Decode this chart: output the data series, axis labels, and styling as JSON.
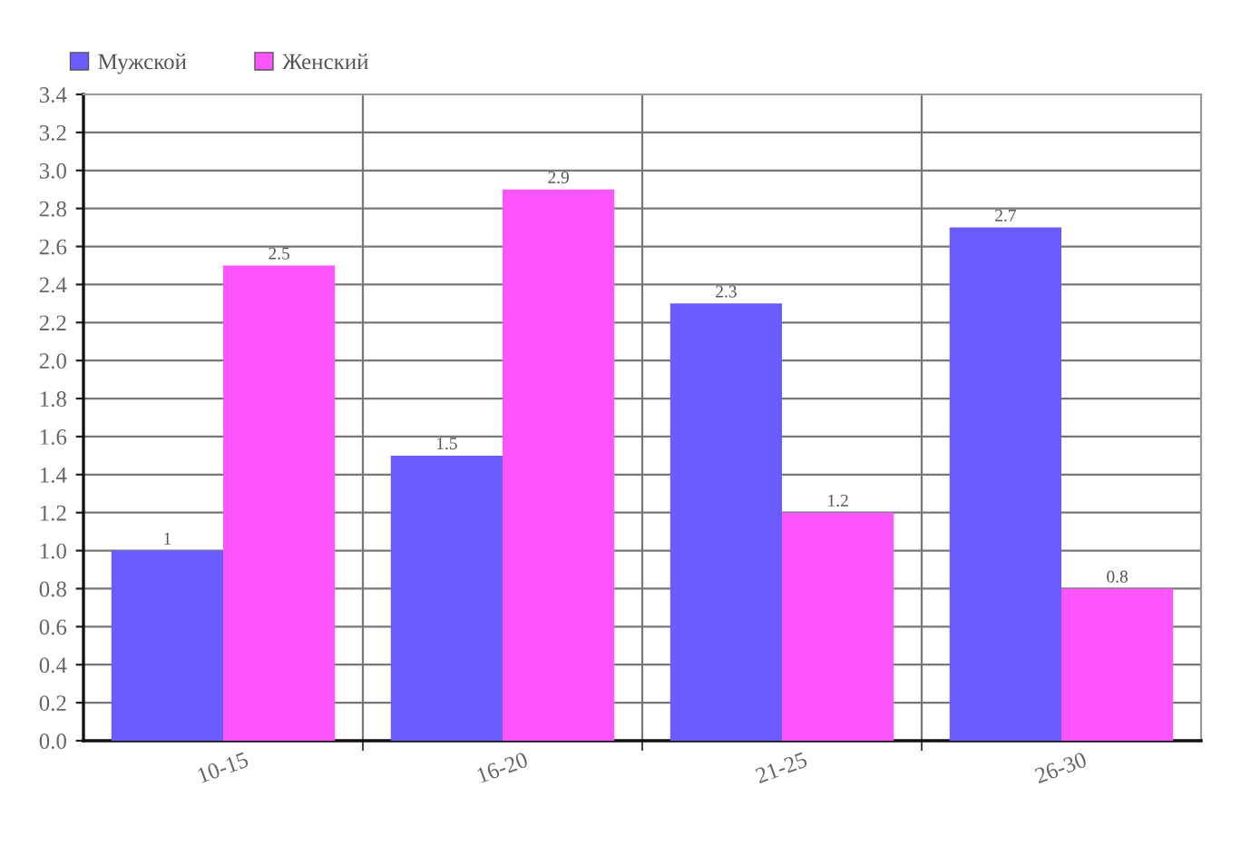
{
  "chart_data": {
    "type": "bar",
    "categories": [
      "10-15",
      "16-20",
      "21-25",
      "26-30"
    ],
    "series": [
      {
        "name": "Мужской",
        "color": "#6b5cff",
        "values": [
          1,
          1.5,
          2.3,
          2.7
        ]
      },
      {
        "name": "Женский",
        "color": "#ff55ff",
        "values": [
          2.5,
          2.9,
          1.2,
          0.8
        ]
      }
    ],
    "ylim": [
      0,
      3.4
    ],
    "yticks": [
      {
        "value": 0,
        "label": "0.0"
      },
      0.2,
      0.4,
      0.6,
      0.8,
      {
        "value": 1,
        "label": "1.0"
      },
      1.2,
      1.4,
      1.6,
      1.8,
      {
        "value": 2,
        "label": "2.0"
      },
      2.2,
      2.4,
      2.6,
      2.8,
      {
        "value": 3,
        "label": "3.0"
      },
      3.2,
      3.4
    ],
    "grid": true,
    "legend": "top left",
    "data_labels": true
  }
}
